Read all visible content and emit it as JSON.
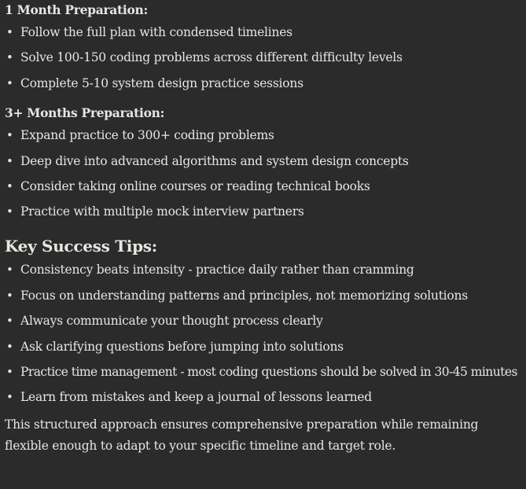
{
  "one_month": {
    "title": "1 Month Preparation:",
    "items": [
      "Follow the full plan with condensed timelines",
      "Solve 100-150 coding problems across different difficulty levels",
      "Complete 5-10 system design practice sessions"
    ]
  },
  "three_months": {
    "title": "3+ Months Preparation:",
    "items": [
      "Expand practice to 300+ coding problems",
      "Deep dive into advanced algorithms and system design concepts",
      "Consider taking online courses or reading technical books",
      "Practice with multiple mock interview partners"
    ]
  },
  "tips": {
    "title": "Key Success Tips:",
    "items": [
      "Consistency beats intensity - practice daily rather than cramming",
      "Focus on understanding patterns and principles, not memorizing solutions",
      "Always communicate your thought process clearly",
      "Ask clarifying questions before jumping into solutions",
      "Practice time management - most coding questions should be solved in 30-45 minutes",
      "Learn from mistakes and keep a journal of lessons learned"
    ]
  },
  "closing": "This structured approach ensures comprehensive preparation while remaining flexible enough to adapt to your specific timeline and target role.",
  "bullet_char": "•",
  "colors": {
    "background": "#2b2b2b",
    "text": "#e8e6e1"
  }
}
